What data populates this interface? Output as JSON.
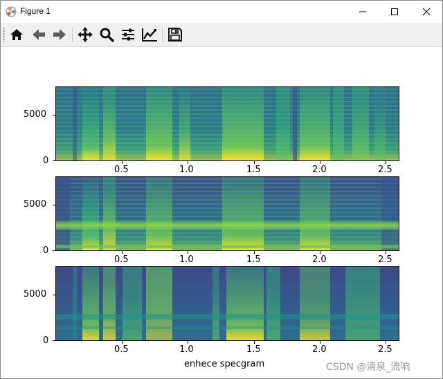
{
  "window": {
    "title": "Figure 1",
    "minimize_label": "minimize",
    "maximize_label": "maximize",
    "close_label": "close"
  },
  "toolbar": {
    "buttons": [
      {
        "name": "home-icon",
        "tooltip": "Home"
      },
      {
        "name": "back-icon",
        "tooltip": "Back"
      },
      {
        "name": "forward-icon",
        "tooltip": "Forward"
      },
      {
        "name": "pan-icon",
        "tooltip": "Pan"
      },
      {
        "name": "zoom-icon",
        "tooltip": "Zoom"
      },
      {
        "name": "subplots-icon",
        "tooltip": "Subplots"
      },
      {
        "name": "customize-icon",
        "tooltip": "Customize"
      },
      {
        "name": "save-icon",
        "tooltip": "Save"
      }
    ]
  },
  "figure": {
    "xlabel": "enhece specgram",
    "x_tick_labels": [
      "0.5",
      "1.0",
      "1.5",
      "2.0",
      "2.5"
    ],
    "y_tick_labels": [
      "5000",
      "0"
    ]
  },
  "chart_data": [
    {
      "type": "heatmap",
      "title": "",
      "xlabel": "",
      "ylabel": "",
      "xlim": [
        0,
        2.6
      ],
      "ylim": [
        0,
        8000
      ],
      "x_ticks": [
        0.5,
        1.0,
        1.5,
        2.0,
        2.5
      ],
      "y_ticks": [
        0,
        5000
      ]
    },
    {
      "type": "heatmap",
      "title": "",
      "xlabel": "",
      "ylabel": "",
      "xlim": [
        0,
        2.6
      ],
      "ylim": [
        0,
        8000
      ],
      "x_ticks": [
        0.5,
        1.0,
        1.5,
        2.0,
        2.5
      ],
      "y_ticks": [
        0,
        5000
      ]
    },
    {
      "type": "heatmap",
      "title": "",
      "xlabel": "enhece specgram",
      "ylabel": "",
      "xlim": [
        0,
        2.6
      ],
      "ylim": [
        0,
        8000
      ],
      "x_ticks": [
        0.5,
        1.0,
        1.5,
        2.0,
        2.5
      ],
      "y_ticks": [
        0,
        5000
      ]
    }
  ],
  "watermark": "CSDN @清泉_流响",
  "colors": {
    "viridis_dark": "#3b528b",
    "viridis_mid": "#21918c",
    "viridis_green": "#5ec962",
    "viridis_yellow": "#fde725"
  }
}
